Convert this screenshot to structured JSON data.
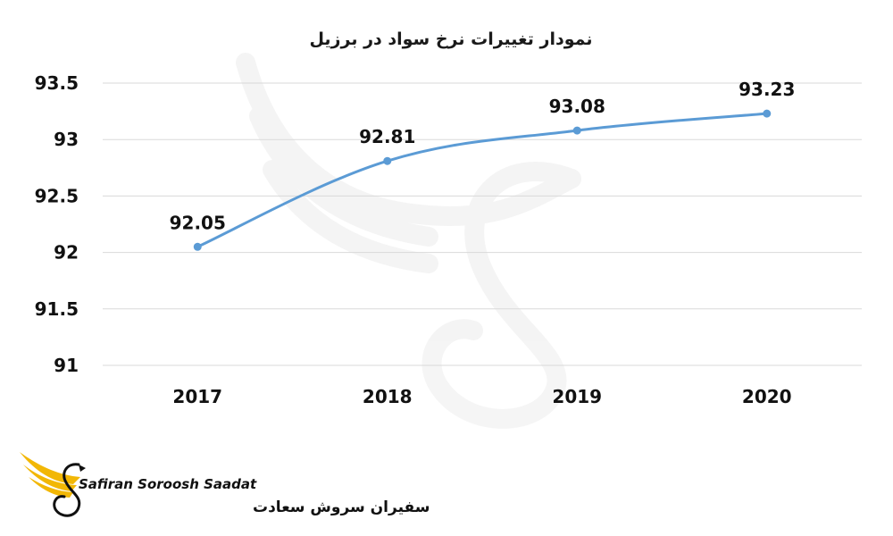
{
  "chart_data": {
    "type": "line",
    "title": "نمودار تغییرات نرخ سواد در برزیل",
    "categories": [
      "2017",
      "2018",
      "2019",
      "2020"
    ],
    "series": [
      {
        "values": [
          92.05,
          92.81,
          93.08,
          93.23
        ],
        "color": "#5b9bd5"
      }
    ],
    "data_labels": [
      "92.05",
      "92.81",
      "93.08",
      "93.23"
    ],
    "y_ticks": [
      91,
      91.5,
      92,
      92.5,
      93,
      93.5
    ],
    "y_tick_labels": [
      "91",
      "91.5",
      "92",
      "92.5",
      "93",
      "93.5"
    ],
    "ylim": [
      91,
      93.5
    ],
    "xlabel": "",
    "ylabel": "",
    "grid": true,
    "legend": "none"
  },
  "brand": {
    "name_en": "Safiran Soroosh Saadat",
    "name_fa": "سفیران سروش سعادت",
    "logo_icon": "winged-swan-icon",
    "accent_color": "#f2b705"
  }
}
